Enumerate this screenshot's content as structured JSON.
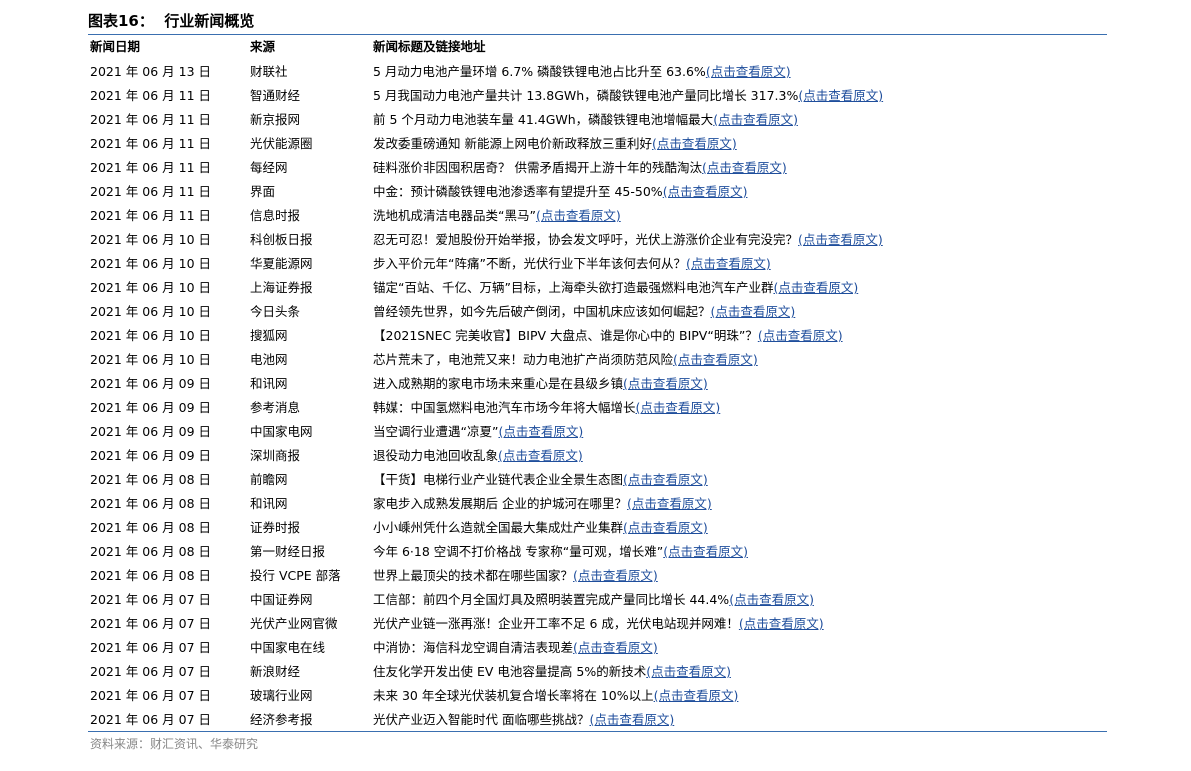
{
  "title": "图表16：  行业新闻概览",
  "table": {
    "headers": [
      "新闻日期",
      "来源",
      "新闻标题及链接地址"
    ],
    "rows": [
      [
        "2021 年 06 月 13 日",
        "财联社",
        "5 月动力电池产量环增 6.7% 磷酸铁锂电池占比升至 63.6%",
        "(点击查看原文)"
      ],
      [
        "2021 年 06 月 11 日",
        "智通财经",
        "5 月我国动力电池产量共计 13.8GWh，磷酸铁锂电池产量同比增长 317.3%",
        "(点击查看原文)"
      ],
      [
        "2021 年 06 月 11 日",
        "新京报网",
        "前 5 个月动力电池装车量 41.4GWh，磷酸铁锂电池增幅最大",
        "(点击查看原文)"
      ],
      [
        "2021 年 06 月 11 日",
        "光伏能源圈",
        "发改委重磅通知 新能源上网电价新政释放三重利好",
        "(点击查看原文)"
      ],
      [
        "2021 年 06 月 11 日",
        "每经网",
        "硅料涨价非因囤积居奇？ 供需矛盾揭开上游十年的残酷淘汰",
        "(点击查看原文)"
      ],
      [
        "2021 年 06 月 11 日",
        "界面",
        "中金：预计磷酸铁锂电池渗透率有望提升至 45-50%",
        "(点击查看原文)"
      ],
      [
        "2021 年 06 月 11 日",
        "信息时报",
        "洗地机成清洁电器品类“黑马”",
        "(点击查看原文)"
      ],
      [
        "2021 年 06 月 10 日",
        "科创板日报",
        "忍无可忍！爱旭股份开始举报，协会发文呼吁，光伏上游涨价企业有完没完？",
        "(点击查看原文)"
      ],
      [
        "2021 年 06 月 10 日",
        "华夏能源网",
        "步入平价元年“阵痛”不断，光伏行业下半年该何去何从？",
        "(点击查看原文)"
      ],
      [
        "2021 年 06 月 10 日",
        "上海证券报",
        "锚定“百站、千亿、万辆”目标，上海牵头欲打造最强燃料电池汽车产业群",
        "(点击查看原文)"
      ],
      [
        "2021 年 06 月 10 日",
        "今日头条",
        "曾经领先世界，如今先后破产倒闭，中国机床应该如何崛起？",
        "(点击查看原文)"
      ],
      [
        "2021 年 06 月 10 日",
        "搜狐网",
        "【2021SNEC 完美收官】BIPV 大盘点、谁是你心中的 BIPV“明珠”？",
        "(点击查看原文)"
      ],
      [
        "2021 年 06 月 10 日",
        "电池网",
        "芯片荒未了，电池荒又来！动力电池扩产尚须防范风险",
        "(点击查看原文)"
      ],
      [
        "2021 年 06 月 09 日",
        "和讯网",
        "进入成熟期的家电市场未来重心是在县级乡镇",
        "(点击查看原文)"
      ],
      [
        "2021 年 06 月 09 日",
        "参考消息",
        "韩媒：中国氢燃料电池汽车市场今年将大幅增长",
        "(点击查看原文)"
      ],
      [
        "2021 年 06 月 09 日",
        "中国家电网",
        "当空调行业遭遇“凉夏”",
        "(点击查看原文)"
      ],
      [
        "2021 年 06 月 09 日",
        "深圳商报",
        "退役动力电池回收乱象",
        "(点击查看原文)"
      ],
      [
        "2021 年 06 月 08 日",
        "前瞻网",
        "【干货】电梯行业产业链代表企业全景生态图",
        "(点击查看原文)"
      ],
      [
        "2021 年 06 月 08 日",
        "和讯网",
        "家电步入成熟发展期后 企业的护城河在哪里？",
        "(点击查看原文)"
      ],
      [
        "2021 年 06 月 08 日",
        "证券时报",
        "小小嵊州凭什么造就全国最大集成灶产业集群",
        "(点击查看原文)"
      ],
      [
        "2021 年 06 月 08 日",
        "第一财经日报",
        "今年 6·18 空调不打价格战 专家称“量可观，增长难”",
        "(点击查看原文)"
      ],
      [
        "2021 年 06 月 08 日",
        "投行 VCPE 部落",
        "世界上最顶尖的技术都在哪些国家？",
        "(点击查看原文)"
      ],
      [
        "2021 年 06 月 07 日",
        "中国证券网",
        "工信部：前四个月全国灯具及照明装置完成产量同比增长 44.4%",
        "(点击查看原文)"
      ],
      [
        "2021 年 06 月 07 日",
        "光伏产业网官微",
        "光伏产业链一涨再涨！企业开工率不足 6 成，光伏电站现并网难！",
        "(点击查看原文)"
      ],
      [
        "2021 年 06 月 07 日",
        "中国家电在线",
        "中消协：海信科龙空调自清洁表现差",
        "(点击查看原文)"
      ],
      [
        "2021 年 06 月 07 日",
        "新浪财经",
        "住友化学开发出使 EV 电池容量提高 5%的新技术",
        "(点击查看原文)"
      ],
      [
        "2021 年 06 月 07 日",
        "玻璃行业网",
        "未来 30 年全球光伏装机复合增长率将在 10%以上",
        "(点击查看原文)"
      ],
      [
        "2021 年 06 月 07 日",
        "经济参考报",
        "光伏产业迈入智能时代 面临哪些挑战？",
        "(点击查看原文)"
      ]
    ]
  },
  "source": "资料来源：财汇资讯、华泰研究"
}
